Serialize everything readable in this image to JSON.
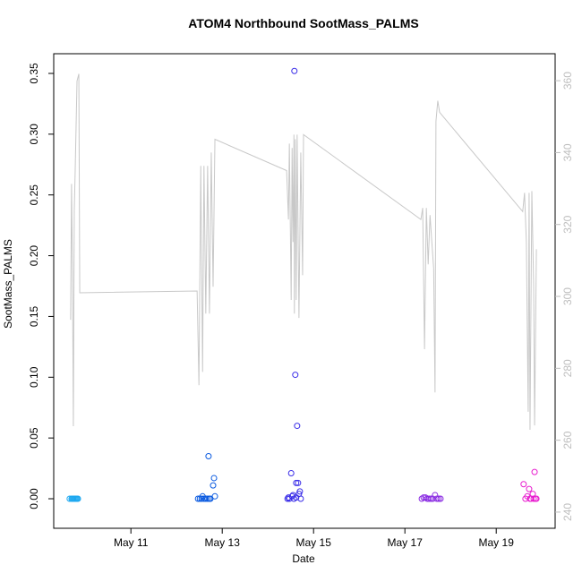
{
  "chart_data": {
    "type": "scatter",
    "title": "ATOM4 Northbound SootMass_PALMS",
    "xlabel": "Date",
    "ylabel": "SootMass_PALMS",
    "xlim": [
      9.31,
      20.29
    ],
    "xticks": [
      {
        "value": 11,
        "label": "May 11"
      },
      {
        "value": 13,
        "label": "May 13"
      },
      {
        "value": 15,
        "label": "May 15"
      },
      {
        "value": 17,
        "label": "May 17"
      },
      {
        "value": 19,
        "label": "May 19"
      }
    ],
    "ylim": [
      -0.0243,
      0.3662
    ],
    "yticks": [
      {
        "value": 0,
        "label": "0.00"
      },
      0.05,
      {
        "value": 0.1,
        "label": "0.10"
      },
      0.15,
      {
        "value": 0.2,
        "label": "0.20"
      },
      0.25,
      {
        "value": 0.3,
        "label": "0.30"
      },
      0.35
    ],
    "y2lim": [
      235.5,
      367.5
    ],
    "y2ticks": [
      240,
      260,
      280,
      300,
      320,
      340,
      360
    ],
    "y2color": "#bebebe",
    "series": [
      {
        "type": "scatter",
        "color": "#1ea8f0",
        "x": [
          9.66,
          9.7,
          9.72,
          9.74,
          9.76,
          9.78,
          9.8,
          9.82,
          9.84
        ],
        "values": [
          0,
          0,
          0,
          0,
          0,
          0,
          0,
          0,
          0
        ]
      },
      {
        "type": "scatter",
        "color": "#0a5ae0",
        "x": [
          12.47,
          12.51,
          12.55,
          12.57,
          12.6,
          12.64,
          12.68,
          12.7,
          12.72,
          12.74,
          12.8,
          12.82,
          12.84
        ],
        "values": [
          0,
          0,
          0,
          0.002,
          0,
          0,
          0,
          0.035,
          0,
          0,
          0.011,
          0.017,
          0.002
        ]
      },
      {
        "type": "scatter",
        "color": "#3b2ee8",
        "x": [
          14.43,
          14.45,
          14.47,
          14.51,
          14.53,
          14.55,
          14.57,
          14.58,
          14.6,
          14.62,
          14.62,
          14.64,
          14.66,
          14.68,
          14.7,
          14.72
        ],
        "values": [
          0,
          0.001,
          0,
          0.021,
          0.002,
          0.003,
          0,
          0.352,
          0.102,
          0.013,
          0.001,
          0.06,
          0.013,
          0.004,
          0.006,
          0
        ]
      },
      {
        "type": "scatter",
        "color": "#8a2be2",
        "x": [
          17.37,
          17.41,
          17.45,
          17.49,
          17.53,
          17.57,
          17.61,
          17.66,
          17.7,
          17.74,
          17.78
        ],
        "values": [
          0,
          0.001,
          0.001,
          0,
          0,
          0,
          0,
          0.003,
          0,
          0,
          0
        ]
      },
      {
        "type": "scatter",
        "color": "#e81ecf",
        "x": [
          19.6,
          19.64,
          19.68,
          19.72,
          19.74,
          19.76,
          19.8,
          19.82,
          19.84,
          19.86,
          19.88
        ],
        "values": [
          0.012,
          0,
          0.002,
          0.008,
          0,
          0,
          0.004,
          0,
          0.022,
          0,
          0
        ]
      },
      {
        "type": "line",
        "axis": "y2",
        "color": "#c8c8c8",
        "x": [
          9.68,
          9.7,
          9.72,
          9.74,
          9.76,
          9.78,
          9.82,
          9.86,
          9.88,
          12.45,
          12.49,
          12.53,
          12.57,
          12.6,
          12.64,
          12.68,
          12.72,
          12.76,
          12.8,
          12.84,
          14.41,
          14.45,
          14.47,
          14.51,
          14.53,
          14.55,
          14.57,
          14.58,
          14.6,
          14.62,
          14.64,
          14.68,
          14.72,
          14.76,
          14.78,
          17.35,
          17.39,
          17.43,
          17.47,
          17.51,
          17.55,
          17.59,
          17.63,
          17.66,
          17.68,
          17.72,
          17.76,
          19.58,
          19.62,
          19.66,
          19.7,
          19.72,
          19.74,
          19.78,
          19.82,
          19.84,
          19.88
        ],
        "values": [
          293.5,
          331.3,
          307.7,
          263.9,
          323.8,
          335,
          359.9,
          361.9,
          301,
          301.5,
          275.3,
          336.3,
          279,
          336.3,
          295.2,
          336.3,
          295.2,
          340,
          302.7,
          343.7,
          335,
          321.4,
          342.5,
          299,
          341.3,
          315.1,
          345,
          295.2,
          343.7,
          299,
          345,
          294,
          340,
          305.9,
          345,
          321.4,
          324.6,
          285.3,
          324.6,
          308.9,
          322.6,
          315.1,
          307.7,
          273.3,
          348.7,
          354.4,
          351.2,
          323.6,
          328.8,
          315.1,
          267.9,
          328.8,
          262.9,
          329.3,
          302.7,
          264.1,
          313.1
        ]
      }
    ]
  }
}
